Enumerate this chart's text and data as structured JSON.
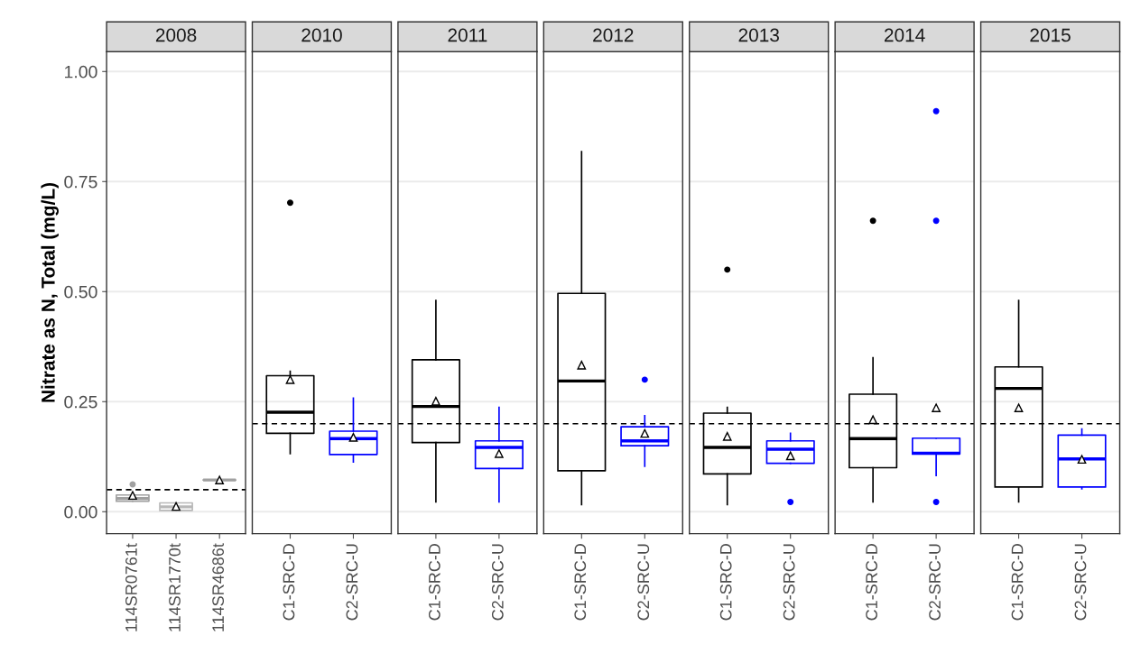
{
  "chart_data": [
    {
      "type": "box",
      "title": "2008",
      "ylabel": "Nitrate as N, Total (mg/L)",
      "categories": [
        "114SR0761t",
        "114SR1770t",
        "114SR4686t"
      ],
      "colors": [
        "#a0a0a0",
        "#b8b8b8",
        "#a0a0a0"
      ],
      "boxes": [
        {
          "low": 0.024,
          "q1": 0.024,
          "median": 0.03,
          "q3": 0.038,
          "high": 0.038,
          "mean": 0.037,
          "outliers": [
            0.062
          ]
        },
        {
          "low": 0.003,
          "q1": 0.003,
          "median": 0.011,
          "q3": 0.02,
          "high": 0.02,
          "mean": 0.012
        },
        {
          "low": 0.072,
          "q1": 0.072,
          "median": 0.072,
          "q3": 0.072,
          "high": 0.072,
          "mean": 0.072
        }
      ],
      "ref_lines": [
        {
          "axis": "y",
          "value": 0.05,
          "line_style": "dashed",
          "color": "#000000"
        }
      ],
      "ylim": [
        -0.05,
        1.045
      ],
      "yticks": [
        {
          "value": 0,
          "label": "0.00"
        },
        {
          "value": 0.25,
          "label": "0.25"
        },
        {
          "value": 0.5,
          "label": "0.50"
        },
        {
          "value": 0.75,
          "label": "0.75"
        },
        {
          "value": 1,
          "label": "1.00"
        }
      ],
      "grid": "y",
      "marker": "triangle"
    },
    {
      "type": "box",
      "title": "2010",
      "categories": [
        "C1-SRC-D",
        "C2-SRC-U"
      ],
      "colors": [
        "#000000",
        "#0000ff"
      ],
      "boxes": [
        {
          "low": 0.132,
          "q1": 0.178,
          "median": 0.226,
          "q3": 0.309,
          "high": 0.319,
          "mean": 0.3,
          "outliers": [
            0.702
          ]
        },
        {
          "low": 0.113,
          "q1": 0.13,
          "median": 0.166,
          "q3": 0.183,
          "high": 0.258,
          "mean": 0.169
        }
      ],
      "ref_lines": [
        {
          "axis": "y",
          "value": 0.2,
          "line_style": "dashed",
          "color": "#000000"
        }
      ],
      "ylim": [
        -0.05,
        1.045
      ],
      "yticks": [
        0,
        0.25,
        0.5,
        0.75,
        1
      ],
      "grid": "y",
      "marker": "triangle",
      "tick_labels": "x"
    },
    {
      "type": "box",
      "title": "2011",
      "categories": [
        "C1-SRC-D",
        "C2-SRC-U"
      ],
      "colors": [
        "#000000",
        "#0000ff"
      ],
      "boxes": [
        {
          "low": 0.022,
          "q1": 0.157,
          "median": 0.239,
          "q3": 0.345,
          "high": 0.48,
          "mean": 0.251
        },
        {
          "low": 0.022,
          "q1": 0.098,
          "median": 0.146,
          "q3": 0.161,
          "high": 0.237,
          "mean": 0.132
        }
      ],
      "ref_lines": [
        {
          "axis": "y",
          "value": 0.2,
          "line_style": "dashed",
          "color": "#000000"
        }
      ],
      "ylim": [
        -0.05,
        1.045
      ],
      "yticks": [
        0,
        0.25,
        0.5,
        0.75,
        1
      ],
      "grid": "y",
      "marker": "triangle",
      "tick_labels": "x"
    },
    {
      "type": "box",
      "title": "2012",
      "categories": [
        "C1-SRC-D",
        "C2-SRC-U"
      ],
      "colors": [
        "#000000",
        "#0000ff"
      ],
      "boxes": [
        {
          "low": 0.016,
          "q1": 0.093,
          "median": 0.297,
          "q3": 0.496,
          "high": 0.818,
          "mean": 0.333
        },
        {
          "low": 0.103,
          "q1": 0.15,
          "median": 0.161,
          "q3": 0.193,
          "high": 0.218,
          "mean": 0.178,
          "outliers": [
            0.3
          ]
        }
      ],
      "ref_lines": [
        {
          "axis": "y",
          "value": 0.2,
          "line_style": "dashed",
          "color": "#000000"
        }
      ],
      "ylim": [
        -0.05,
        1.045
      ],
      "yticks": [
        0,
        0.25,
        0.5,
        0.75,
        1
      ],
      "grid": "y",
      "marker": "triangle",
      "tick_labels": "x"
    },
    {
      "type": "box",
      "title": "2013",
      "categories": [
        "C1-SRC-D",
        "C2-SRC-U"
      ],
      "colors": [
        "#000000",
        "#0000ff"
      ],
      "boxes": [
        {
          "low": 0.016,
          "q1": 0.086,
          "median": 0.146,
          "q3": 0.224,
          "high": 0.237,
          "mean": 0.171,
          "outliers": [
            0.55
          ]
        },
        {
          "low": 0.11,
          "q1": 0.11,
          "median": 0.142,
          "q3": 0.161,
          "high": 0.178,
          "mean": 0.127,
          "outliers": [
            0.022
          ]
        }
      ],
      "ref_lines": [
        {
          "axis": "y",
          "value": 0.2,
          "line_style": "dashed",
          "color": "#000000"
        }
      ],
      "ylim": [
        -0.05,
        1.045
      ],
      "yticks": [
        0,
        0.25,
        0.5,
        0.75,
        1
      ],
      "grid": "y",
      "marker": "triangle",
      "tick_labels": "x"
    },
    {
      "type": "box",
      "title": "2014",
      "categories": [
        "C1-SRC-D",
        "C2-SRC-U"
      ],
      "colors": [
        "#000000",
        "#0000ff"
      ],
      "boxes": [
        {
          "low": 0.022,
          "q1": 0.1,
          "median": 0.166,
          "q3": 0.267,
          "high": 0.35,
          "mean": 0.209,
          "outliers": [
            0.661
          ]
        },
        {
          "low": 0.082,
          "q1": 0.131,
          "median": 0.133,
          "q3": 0.167,
          "high": 0.167,
          "mean": 0.236,
          "outliers": [
            0.91,
            0.661,
            0.022
          ]
        }
      ],
      "ref_lines": [
        {
          "axis": "y",
          "value": 0.2,
          "line_style": "dashed",
          "color": "#000000"
        }
      ],
      "ylim": [
        -0.05,
        1.045
      ],
      "yticks": [
        0,
        0.25,
        0.5,
        0.75,
        1
      ],
      "grid": "y",
      "marker": "triangle",
      "tick_labels": "x"
    },
    {
      "type": "box",
      "title": "2015",
      "categories": [
        "C1-SRC-D",
        "C2-SRC-U"
      ],
      "colors": [
        "#000000",
        "#0000ff"
      ],
      "boxes": [
        {
          "low": 0.022,
          "q1": 0.056,
          "median": 0.28,
          "q3": 0.329,
          "high": 0.48,
          "mean": 0.236
        },
        {
          "low": 0.052,
          "q1": 0.056,
          "median": 0.12,
          "q3": 0.174,
          "high": 0.188,
          "mean": 0.119
        }
      ],
      "ref_lines": [
        {
          "axis": "y",
          "value": 0.2,
          "line_style": "dashed",
          "color": "#000000"
        }
      ],
      "ylim": [
        -0.05,
        1.045
      ],
      "yticks": [
        0,
        0.25,
        0.5,
        0.75,
        1
      ],
      "grid": "y",
      "marker": "triangle",
      "tick_labels": "x"
    }
  ]
}
